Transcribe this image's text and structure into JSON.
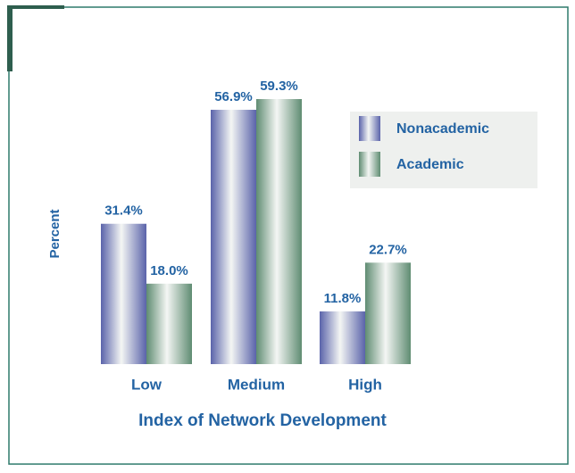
{
  "chart_data": {
    "type": "bar",
    "x_label": "Index of Network Development",
    "y_label": "Percent",
    "categories": [
      "Low",
      "Medium",
      "High"
    ],
    "series": [
      {
        "name": "Nonacademic",
        "color": "#5a63aa",
        "values": [
          31.4,
          56.9,
          11.8
        ],
        "value_labels": [
          "31.4%",
          "56.9%",
          "11.8%"
        ]
      },
      {
        "name": "Academic",
        "color": "#5f8c72",
        "values": [
          18.0,
          59.3,
          22.7
        ],
        "value_labels": [
          "18.0%",
          "59.3%",
          "22.7%"
        ]
      }
    ],
    "legend": "upper right"
  }
}
